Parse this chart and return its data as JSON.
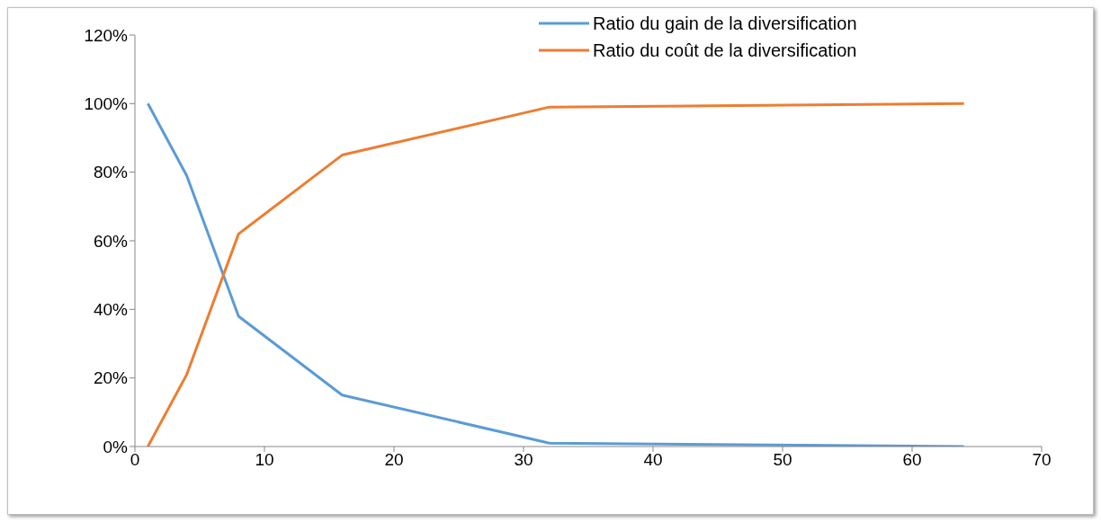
{
  "chart_data": {
    "type": "line",
    "x": [
      1,
      4,
      8,
      16,
      32,
      64
    ],
    "series": [
      {
        "name": "Ratio du gain de la diversification",
        "color": "#5b9bd5",
        "values": [
          100,
          79,
          38,
          15,
          1,
          0
        ]
      },
      {
        "name": "Ratio du coût de la diversification",
        "color": "#ed7d31",
        "values": [
          0,
          21,
          62,
          85,
          99,
          100
        ]
      }
    ],
    "xlim": [
      0,
      70
    ],
    "xticks": [
      0,
      10,
      20,
      30,
      40,
      50,
      60,
      70
    ],
    "ylim": [
      0,
      120
    ],
    "yticks": [
      {
        "value": 0,
        "label": "0%"
      },
      {
        "value": 20,
        "label": "20%"
      },
      {
        "value": 40,
        "label": "40%"
      },
      {
        "value": 60,
        "label": "60%"
      },
      {
        "value": 80,
        "label": "80%"
      },
      {
        "value": 100,
        "label": "100%"
      },
      {
        "value": 120,
        "label": "120%"
      }
    ],
    "grid": false,
    "legend": "top right",
    "marker": "none",
    "line_style": "solid"
  }
}
